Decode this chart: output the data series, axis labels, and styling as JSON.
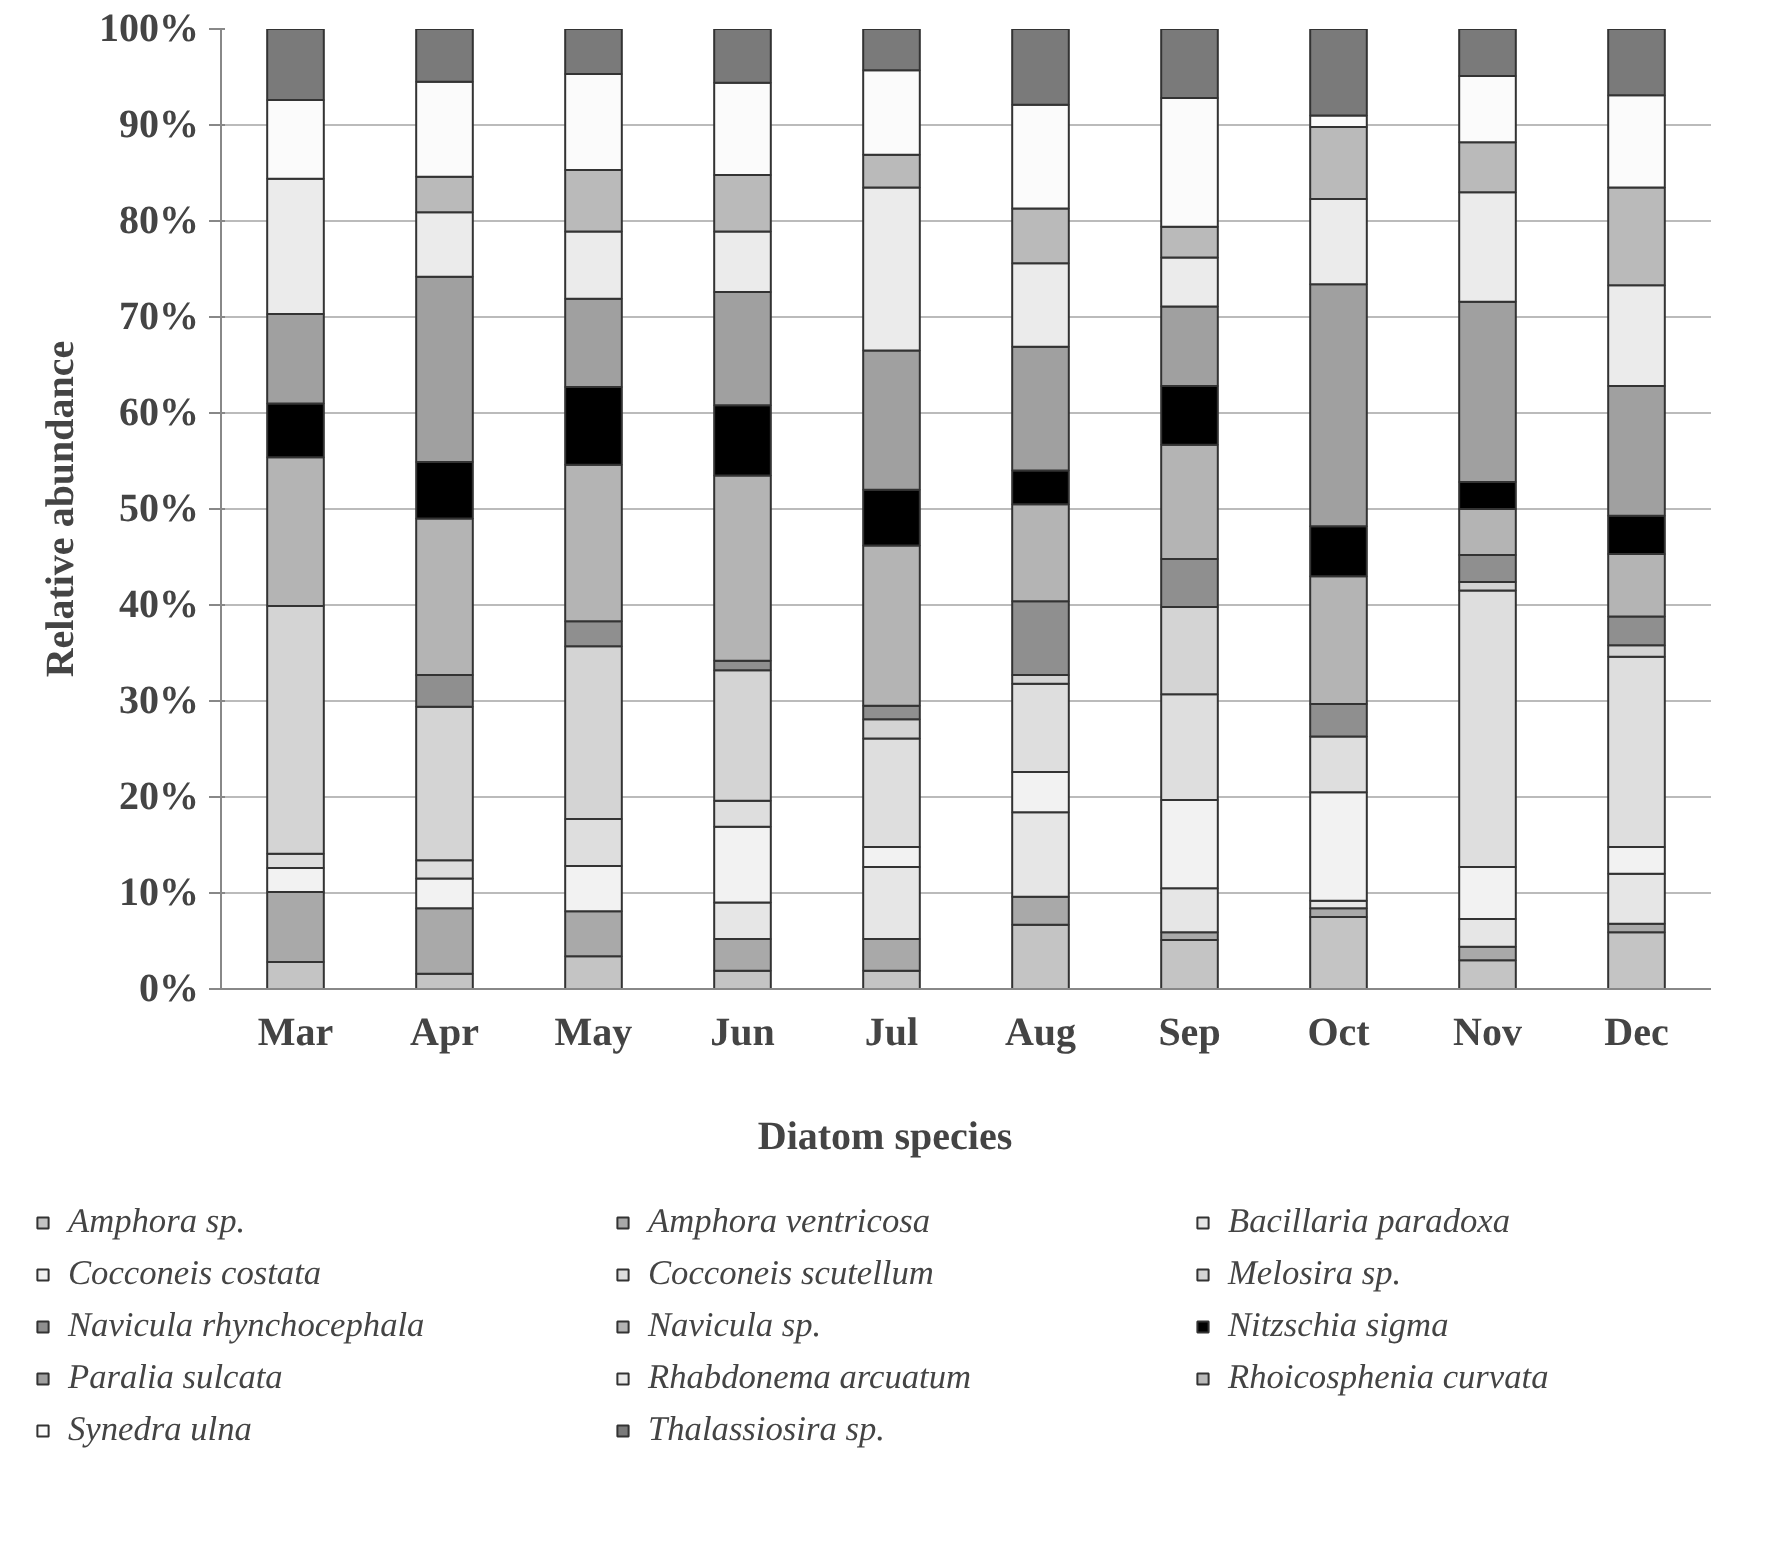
{
  "chart_data": {
    "type": "bar",
    "stacked": true,
    "ylabel": "Relative abundance",
    "legend_title": "Diatom species",
    "legend": "bottom",
    "grid": "y",
    "categories": [
      "Mar",
      "Apr",
      "May",
      "Jun",
      "Jul",
      "Aug",
      "Sep",
      "Oct",
      "Nov",
      "Dec"
    ],
    "ylim": [
      0,
      100
    ],
    "yticks": [
      {
        "value": 0,
        "label": "0%"
      },
      {
        "value": 10,
        "label": "10%"
      },
      {
        "value": 20,
        "label": "20%"
      },
      {
        "value": 30,
        "label": "30%"
      },
      {
        "value": 40,
        "label": "40%"
      },
      {
        "value": 50,
        "label": "50%"
      },
      {
        "value": 60,
        "label": "60%"
      },
      {
        "value": 70,
        "label": "70%"
      },
      {
        "value": 80,
        "label": "80%"
      },
      {
        "value": 90,
        "label": "90%"
      },
      {
        "value": 100,
        "label": "100%"
      }
    ],
    "series": [
      {
        "name": "Amphora sp.",
        "color": "#c4c4c4",
        "values": [
          2.8,
          1.6,
          3.4,
          1.9,
          1.9,
          6.7,
          5.1,
          7.5,
          3.0,
          5.9
        ]
      },
      {
        "name": "Amphora ventricosa",
        "color": "#a9a9a9",
        "values": [
          7.3,
          6.8,
          4.7,
          3.3,
          3.3,
          2.9,
          0.8,
          0.9,
          1.4,
          0.9
        ]
      },
      {
        "name": "Bacillaria paradoxa",
        "color": "#e6e6e6",
        "values": [
          0,
          0,
          0,
          3.8,
          7.5,
          8.8,
          4.6,
          0.8,
          2.9,
          5.2
        ]
      },
      {
        "name": "Cocconeis costata",
        "color": "#f2f2f2",
        "values": [
          2.5,
          3.1,
          4.7,
          7.9,
          2.1,
          4.2,
          9.2,
          11.3,
          5.4,
          2.8
        ]
      },
      {
        "name": "Cocconeis scutellum",
        "color": "#dedede",
        "values": [
          1.5,
          1.9,
          4.9,
          2.7,
          11.3,
          9.2,
          11.0,
          5.8,
          28.8,
          19.8
        ]
      },
      {
        "name": "Melosira sp.",
        "color": "#d4d4d4",
        "values": [
          25.8,
          16.0,
          18.0,
          13.6,
          2.0,
          0.9,
          9.1,
          0,
          0.9,
          1.2
        ]
      },
      {
        "name": "Navicula rhynchocephala",
        "color": "#8f8f8f",
        "values": [
          0,
          3.3,
          2.6,
          1.0,
          1.4,
          7.7,
          5.0,
          3.4,
          2.8,
          3.0
        ]
      },
      {
        "name": "Navicula sp.",
        "color": "#b4b4b4",
        "values": [
          15.5,
          16.3,
          16.3,
          19.3,
          16.7,
          10.1,
          11.9,
          13.3,
          4.8,
          6.5
        ]
      },
      {
        "name": "Nitzschia sigma",
        "color": "#000000",
        "values": [
          5.6,
          5.9,
          8.1,
          7.3,
          5.8,
          3.5,
          6.1,
          5.2,
          2.8,
          4.0
        ]
      },
      {
        "name": "Paralia sulcata",
        "color": "#a0a0a0",
        "values": [
          9.3,
          19.3,
          9.2,
          11.8,
          14.5,
          12.9,
          8.3,
          25.2,
          18.8,
          13.5
        ]
      },
      {
        "name": "Rhabdonema arcuatum",
        "color": "#ebebeb",
        "values": [
          14.1,
          6.7,
          7.0,
          6.3,
          17.0,
          8.7,
          5.1,
          8.9,
          11.4,
          10.5
        ]
      },
      {
        "name": "Rhoicosphenia curvata",
        "color": "#bababa",
        "values": [
          0,
          3.7,
          6.4,
          5.9,
          3.4,
          5.7,
          3.2,
          7.5,
          5.2,
          10.2
        ]
      },
      {
        "name": "Synedra ulna",
        "color": "#fbfbfb",
        "values": [
          8.2,
          9.9,
          10.0,
          9.6,
          8.8,
          10.8,
          13.4,
          1.2,
          6.9,
          9.6
        ]
      },
      {
        "name": "Thalassiosira sp.",
        "color": "#7a7a7a",
        "values": [
          7.4,
          5.5,
          4.7,
          5.6,
          4.3,
          7.9,
          7.2,
          9.0,
          4.9,
          6.9
        ]
      }
    ]
  }
}
